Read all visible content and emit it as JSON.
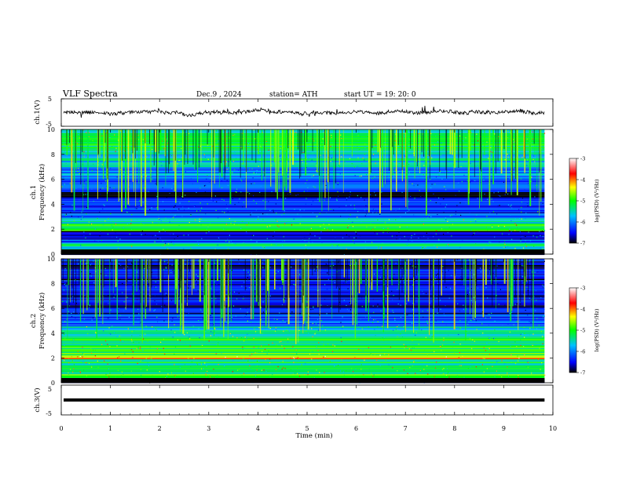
{
  "header": {
    "title": "VLF  Spectra",
    "date": "Dec.9  , 2024",
    "station": "station= ATH",
    "start_ut": "start  UT  =    19: 20: 0"
  },
  "chart_data": [
    {
      "type": "line",
      "panel": "ch1",
      "ylabel": "ch.1(V)",
      "ylim": [
        -5,
        5
      ],
      "yticks": [
        "5",
        "-5"
      ],
      "description_values": "noisy waveform near 0 V",
      "x_range": [
        0,
        10
      ],
      "data_extent_min": 9.83
    },
    {
      "type": "heatmap",
      "panel": "ch1-spectrogram",
      "ylabel": "ch.1\nFrequency (kHz)",
      "ylabel_lines": [
        "ch.1",
        "Frequency (kHz)"
      ],
      "ylim": [
        0,
        10
      ],
      "yticks": [
        "0",
        "2",
        "4",
        "6",
        "8",
        "10"
      ],
      "x_range": [
        0,
        10
      ],
      "data_extent_min": 9.83,
      "colorbar": {
        "label": "log(PSD) (V²/Hz)",
        "ticks": [
          "-3",
          "-4",
          "-5",
          "-6",
          "-7"
        ],
        "range": [
          -7,
          -3
        ]
      },
      "band_levels": [
        {
          "f": [
            0.0,
            0.3
          ],
          "level": -7.0
        },
        {
          "f": [
            0.3,
            0.9
          ],
          "level": -5.5
        },
        {
          "f": [
            0.9,
            1.2
          ],
          "level": -6.2
        },
        {
          "f": [
            1.2,
            1.9
          ],
          "level": -6.6
        },
        {
          "f": [
            1.9,
            2.3
          ],
          "level": -5.2
        },
        {
          "f": [
            2.3,
            2.5
          ],
          "level": -4.8
        },
        {
          "f": [
            2.5,
            3.0
          ],
          "level": -5.6
        },
        {
          "f": [
            3.0,
            3.5
          ],
          "level": -6.3
        },
        {
          "f": [
            3.5,
            4.6
          ],
          "level": -6.4
        },
        {
          "f": [
            4.6,
            5.0
          ],
          "level": -6.9
        },
        {
          "f": [
            5.0,
            6.0
          ],
          "level": -6.2
        },
        {
          "f": [
            6.0,
            7.0
          ],
          "level": -5.9
        },
        {
          "f": [
            7.0,
            8.0
          ],
          "level": -5.6
        },
        {
          "f": [
            8.0,
            10.0
          ],
          "level": -5.3
        }
      ]
    },
    {
      "type": "heatmap",
      "panel": "ch2-spectrogram",
      "ylabel": "ch.2\nFrequency (kHz)",
      "ylabel_lines": [
        "ch.2",
        "Frequency (kHz)"
      ],
      "ylim": [
        0,
        10
      ],
      "yticks": [
        "0",
        "2",
        "4",
        "6",
        "8",
        "10"
      ],
      "x_range": [
        0,
        10
      ],
      "data_extent_min": 9.83,
      "colorbar": {
        "label": "log(PSD) (V²/Hz)",
        "ticks": [
          "-3",
          "-4",
          "-5",
          "-6",
          "-7"
        ],
        "range": [
          -7,
          -3
        ]
      },
      "band_levels": [
        {
          "f": [
            0.0,
            0.3
          ],
          "level": -7.0
        },
        {
          "f": [
            0.3,
            1.3
          ],
          "level": -5.1
        },
        {
          "f": [
            1.3,
            1.9
          ],
          "level": -5.3
        },
        {
          "f": [
            1.9,
            2.3
          ],
          "level": -4.3
        },
        {
          "f": [
            2.3,
            3.0
          ],
          "level": -5.0
        },
        {
          "f": [
            3.0,
            3.6
          ],
          "level": -5.2
        },
        {
          "f": [
            3.6,
            4.6
          ],
          "level": -5.6
        },
        {
          "f": [
            4.6,
            5.5
          ],
          "level": -6.2
        },
        {
          "f": [
            5.5,
            7.0
          ],
          "level": -6.5
        },
        {
          "f": [
            7.0,
            10.0
          ],
          "level": -6.6
        }
      ]
    },
    {
      "type": "line",
      "panel": "ch3",
      "ylabel": "ch.3(V)",
      "ylim": [
        -5,
        5
      ],
      "yticks": [
        "5",
        "-5"
      ],
      "constant_value": 0,
      "x_range": [
        0,
        10
      ],
      "data_extent_min": 9.83
    }
  ],
  "xaxis": {
    "label": "Time  (min)",
    "ticks": [
      "0",
      "1",
      "2",
      "3",
      "4",
      "5",
      "6",
      "7",
      "8",
      "9",
      "10"
    ],
    "range": [
      0,
      10
    ]
  },
  "colors": {
    "colormap": [
      "#000000",
      "#0000ff",
      "#00c0ff",
      "#00ff00",
      "#ffff00",
      "#ff0000",
      "#ffffff"
    ],
    "trace": "#000000"
  }
}
